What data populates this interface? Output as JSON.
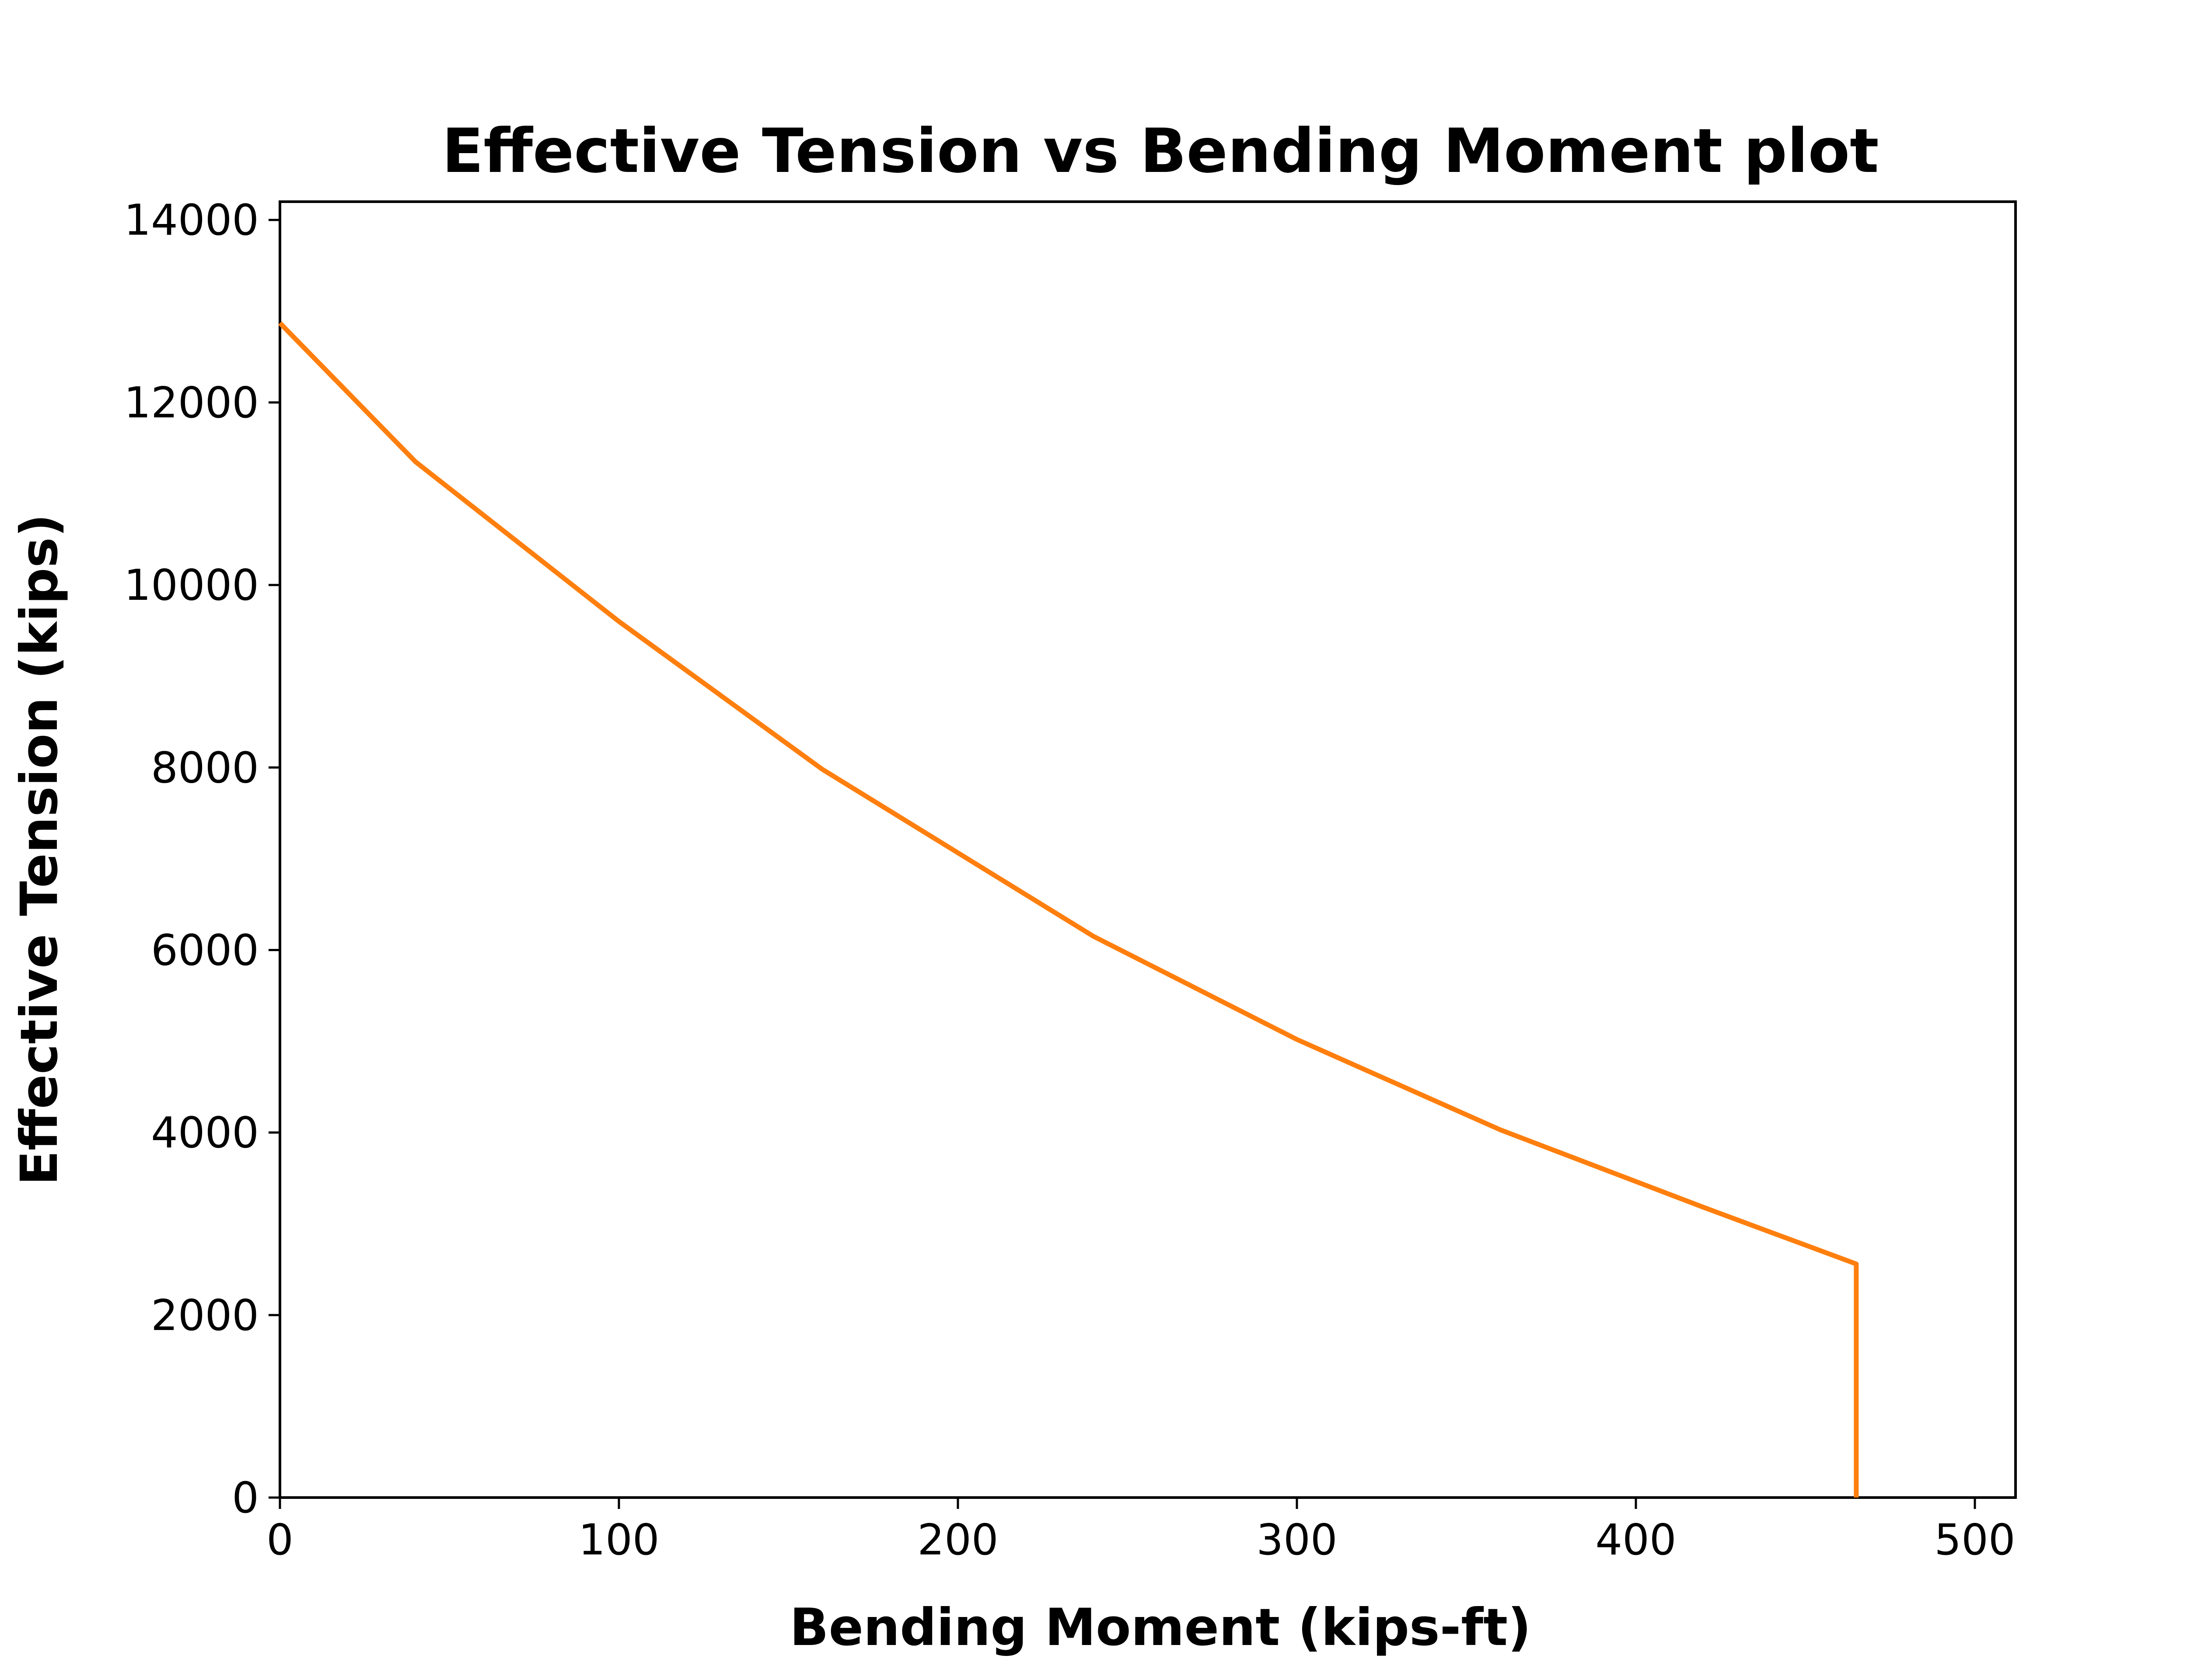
{
  "chart_data": {
    "type": "line",
    "title": "Effective Tension vs Bending Moment plot",
    "xlabel": "Bending Moment (kips-ft)",
    "ylabel": "Effective Tension  (kips)",
    "xlim": [
      0,
      512
    ],
    "ylim": [
      0,
      14200
    ],
    "xticks": [
      0,
      100,
      200,
      300,
      400,
      500
    ],
    "yticks": [
      0,
      2000,
      4000,
      6000,
      8000,
      10000,
      12000,
      14000
    ],
    "xtick_labels": [
      "0",
      "100",
      "200",
      "300",
      "400",
      "500"
    ],
    "ytick_labels": [
      "0",
      "2000",
      "4000",
      "6000",
      "8000",
      "10000",
      "12000",
      "14000"
    ],
    "grid": false,
    "series": [
      {
        "color": "#ff7f0e",
        "x": [
          0,
          40,
          100,
          160,
          240,
          300,
          360,
          420,
          465,
          465
        ],
        "y": [
          12870,
          11350,
          9600,
          7980,
          6150,
          5020,
          4030,
          3180,
          2560,
          0
        ]
      }
    ]
  }
}
